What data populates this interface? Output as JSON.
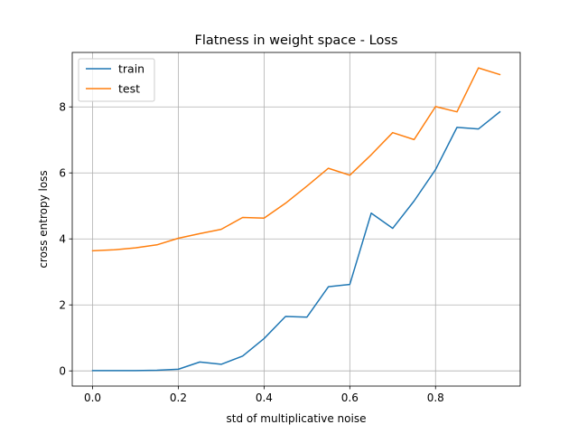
{
  "chart_data": {
    "type": "line",
    "title": "Flatness in weight space - Loss",
    "xlabel": "std of multiplicative noise",
    "ylabel": "cross entropy loss",
    "xlim": [
      -0.0475,
      0.9975
    ],
    "ylim": [
      -0.46,
      9.65
    ],
    "xticks": [
      0.0,
      0.2,
      0.4,
      0.6,
      0.8
    ],
    "xtick_labels": [
      "0.0",
      "0.2",
      "0.4",
      "0.6",
      "0.8"
    ],
    "yticks": [
      0,
      2,
      4,
      6,
      8
    ],
    "ytick_labels": [
      "0",
      "2",
      "4",
      "6",
      "8"
    ],
    "grid": true,
    "legend": "top-left",
    "x": [
      0.0,
      0.05,
      0.1,
      0.15,
      0.2,
      0.25,
      0.3,
      0.35,
      0.4,
      0.45,
      0.5,
      0.55,
      0.6,
      0.65,
      0.7,
      0.75,
      0.8,
      0.85,
      0.9,
      0.95
    ],
    "series": [
      {
        "name": "train",
        "color": "#1f77b4",
        "values": [
          0.01,
          0.01,
          0.01,
          0.02,
          0.05,
          0.27,
          0.2,
          0.45,
          0.98,
          1.65,
          1.63,
          2.55,
          2.62,
          4.78,
          4.32,
          5.15,
          6.1,
          7.38,
          7.33,
          7.85
        ]
      },
      {
        "name": "test",
        "color": "#ff7f0e",
        "values": [
          3.64,
          3.67,
          3.73,
          3.82,
          4.02,
          4.16,
          4.29,
          4.65,
          4.63,
          5.08,
          5.6,
          6.14,
          5.93,
          6.55,
          7.22,
          7.01,
          8.01,
          7.85,
          9.18,
          8.98
        ]
      }
    ]
  }
}
